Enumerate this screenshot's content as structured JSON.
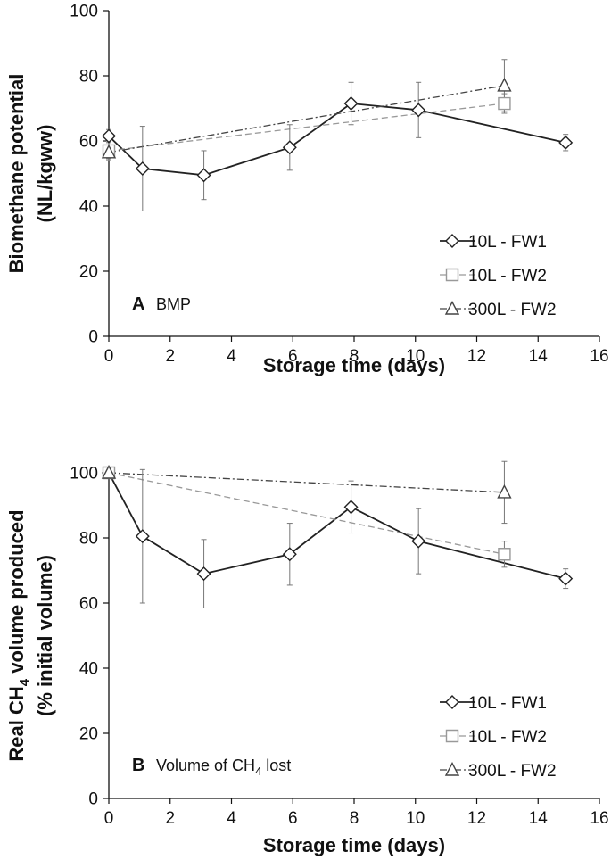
{
  "chart_data": [
    {
      "type": "line",
      "panel_letter": "A",
      "panel_description": "BMP",
      "panel_subscript": "",
      "panel_suffix": "",
      "xlabel": "Storage time (days)",
      "ylabel_line1": "Biomethane potential",
      "ylabel_line2": "(NL/kgww)",
      "ylabel_sub": "",
      "ylabel_line1_suffix": "",
      "xlim": [
        0,
        16
      ],
      "ylim": [
        0,
        100
      ],
      "xticks": [
        0,
        2,
        4,
        6,
        8,
        10,
        12,
        14,
        16
      ],
      "yticks": [
        0,
        20,
        40,
        60,
        80,
        100
      ],
      "legend_position": "bottom-right",
      "series": [
        {
          "name": "10L - FW1",
          "marker": "diamond",
          "line": "solid",
          "color": "#222222",
          "x": [
            0,
            1.1,
            3.1,
            5.9,
            7.9,
            10.1,
            14.9
          ],
          "y": [
            61.5,
            51.5,
            49.5,
            58,
            71.5,
            69.5,
            59.5
          ],
          "err": [
            2,
            13,
            7.5,
            7,
            6.5,
            8.5,
            2.5
          ]
        },
        {
          "name": "10L - FW2",
          "marker": "square",
          "line": "dashed",
          "color": "#999999",
          "x": [
            0,
            12.9
          ],
          "y": [
            57,
            71.5
          ],
          "err": [
            3,
            3
          ]
        },
        {
          "name": "300L - FW2",
          "marker": "triangle",
          "line": "dashdot",
          "color": "#444444",
          "x": [
            0,
            12.9
          ],
          "y": [
            56.5,
            77
          ],
          "err": [
            2,
            8
          ]
        }
      ]
    },
    {
      "type": "line",
      "panel_letter": "B",
      "panel_description": "Volume of CH",
      "panel_subscript": "4",
      "panel_suffix": " lost",
      "xlabel": "Storage time (days)",
      "ylabel_line1": "Real CH",
      "ylabel_sub": "4",
      "ylabel_line1_suffix": " volume produced",
      "ylabel_line2": "(% initial volume)",
      "xlim": [
        0,
        16
      ],
      "ylim": [
        0,
        100
      ],
      "xticks": [
        0,
        2,
        4,
        6,
        8,
        10,
        12,
        14,
        16
      ],
      "yticks": [
        0,
        20,
        40,
        60,
        80,
        100
      ],
      "legend_position": "bottom-right",
      "series": [
        {
          "name": "10L - FW1",
          "marker": "diamond",
          "line": "solid",
          "color": "#222222",
          "x": [
            0,
            1.1,
            3.1,
            5.9,
            7.9,
            10.1,
            14.9
          ],
          "y": [
            100,
            80.5,
            69,
            75,
            89.5,
            79,
            67.5
          ],
          "err": [
            0.5,
            20.5,
            10.5,
            9.5,
            8,
            10,
            3
          ]
        },
        {
          "name": "10L - FW2",
          "marker": "square",
          "line": "dashed",
          "color": "#999999",
          "x": [
            0,
            12.9
          ],
          "y": [
            100,
            75
          ],
          "err": [
            0.5,
            4
          ]
        },
        {
          "name": "300L - FW2",
          "marker": "triangle",
          "line": "dashdot",
          "color": "#444444",
          "x": [
            0,
            12.9
          ],
          "y": [
            100,
            94
          ],
          "err": [
            0.5,
            9.5
          ]
        }
      ]
    }
  ]
}
